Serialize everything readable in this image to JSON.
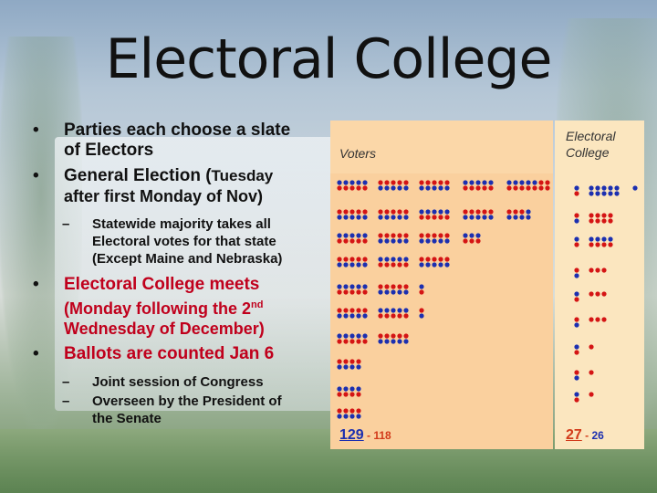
{
  "slide": {
    "title": "Electoral College",
    "bullets": {
      "b1_line1": "Parties each choose a slate",
      "b1_line2": "of Electors",
      "b2_line1": "General Election (",
      "b2_bold_paren": "Tuesday",
      "b2_line2": "after first Monday of Nov)",
      "sub1_line1": "Statewide majority takes all",
      "sub1_line2": "Electoral votes for that state",
      "sub1_line3": "(Except Maine and Nebraska)",
      "b3_line1": "Electoral College meets",
      "b3_line2_pre": "(Monday following the 2",
      "b3_sup": "nd",
      "b3_line3": "Wednesday of December)",
      "b4": "Ballots are counted Jan 6",
      "sub2": "Joint session of Congress",
      "sub3_line1": "Overseen by the President of",
      "sub3_line2": "the Senate",
      "bullet_glyph": "•",
      "dash_glyph": "–"
    }
  },
  "figure": {
    "voters_label": "Voters",
    "ec_label_line1": "Electoral",
    "ec_label_line2": "College",
    "voters_blue": "129",
    "voters_sep": " - ",
    "voters_red": "118",
    "ec_blue": "27",
    "ec_sep": " - ",
    "ec_red": "26",
    "colors": {
      "blue": "#1b2fb0",
      "red": "#d41414",
      "panel": "#fad09e",
      "panel_light": "#fbe6bf"
    },
    "voter_rows": [
      [
        [
          "b",
          5
        ],
        [
          "b",
          5
        ],
        [
          "b",
          5
        ],
        [
          "b",
          5
        ],
        [
          "b",
          5,
          "r",
          2
        ]
      ],
      [
        [
          "r",
          5
        ],
        [
          "r",
          5
        ],
        [
          "r",
          5
        ],
        [
          "r",
          5
        ],
        [
          "r",
          4,
          "b",
          1
        ]
      ],
      [
        [
          "b",
          5
        ],
        [
          "r",
          5
        ],
        [
          "r",
          5
        ],
        [
          "r",
          4,
          "b",
          1
        ],
        [
          "r",
          1
        ]
      ],
      [
        [
          "r",
          5
        ],
        [
          "r",
          5
        ],
        [
          "b",
          5
        ],
        [
          "b",
          5
        ],
        [
          "r",
          1
        ]
      ],
      [
        [
          "b",
          5
        ],
        [
          "b",
          5
        ],
        [
          "r",
          5
        ],
        [
          "b",
          1,
          "b",
          2
        ]
      ],
      [
        [
          "r",
          5
        ],
        [
          "r",
          5
        ],
        [
          "r",
          5
        ],
        [
          "r",
          1
        ]
      ],
      [
        [
          "b",
          5
        ],
        [
          "r",
          5
        ],
        [
          "b",
          4,
          "b",
          1
        ]
      ],
      [
        [
          "r",
          5
        ],
        [
          "b",
          5
        ],
        [
          "b",
          1,
          "r",
          1
        ]
      ],
      [
        [
          "b",
          5
        ],
        [
          "r",
          5
        ],
        [
          "b",
          1
        ]
      ],
      [
        [
          "r",
          5
        ],
        [
          "b",
          5
        ],
        [
          "r",
          1
        ]
      ],
      [
        [
          "b",
          5
        ],
        [
          "b",
          5
        ],
        [
          "b",
          1
        ]
      ],
      [
        [
          "r",
          5
        ],
        [
          "r",
          5
        ],
        [
          "r",
          1
        ]
      ],
      [
        [
          "b",
          5
        ],
        [
          "r",
          2
        ]
      ],
      [
        [
          "r",
          5
        ],
        [
          "r",
          1
        ]
      ],
      [
        [
          "b",
          5
        ],
        [
          "r",
          1
        ]
      ],
      [
        [
          "r",
          5
        ],
        [
          "b",
          1
        ]
      ],
      [
        [
          "b",
          5
        ],
        [
          "r",
          1
        ]
      ],
      [
        [
          "r",
          5
        ],
        [
          "r",
          1
        ]
      ]
    ],
    "ec_rows": [
      [
        [
          "b",
          1
        ],
        [
          "b",
          5
        ],
        [
          "b",
          1
        ]
      ],
      [
        [
          "r",
          1
        ],
        [
          "r",
          5
        ]
      ],
      [
        [
          "r",
          1
        ],
        [
          "r",
          5
        ]
      ],
      [
        [
          "b",
          1
        ],
        [
          "b",
          5
        ]
      ],
      [
        [
          "r",
          1
        ],
        [
          "r",
          4
        ]
      ],
      [
        [
          "b",
          1
        ],
        [
          "r",
          4
        ]
      ],
      [
        [
          "r",
          1
        ],
        [
          "r",
          3
        ]
      ],
      [
        [
          "b",
          1
        ],
        [
          "r",
          3
        ]
      ],
      [
        [
          "r",
          1
        ],
        [
          "r",
          3
        ]
      ],
      [
        [
          "b",
          1
        ],
        [
          "r",
          1
        ]
      ],
      [
        [
          "b",
          1
        ],
        [
          "b",
          1
        ]
      ],
      [
        [
          "b",
          1
        ],
        [
          "b",
          1
        ]
      ]
    ]
  }
}
